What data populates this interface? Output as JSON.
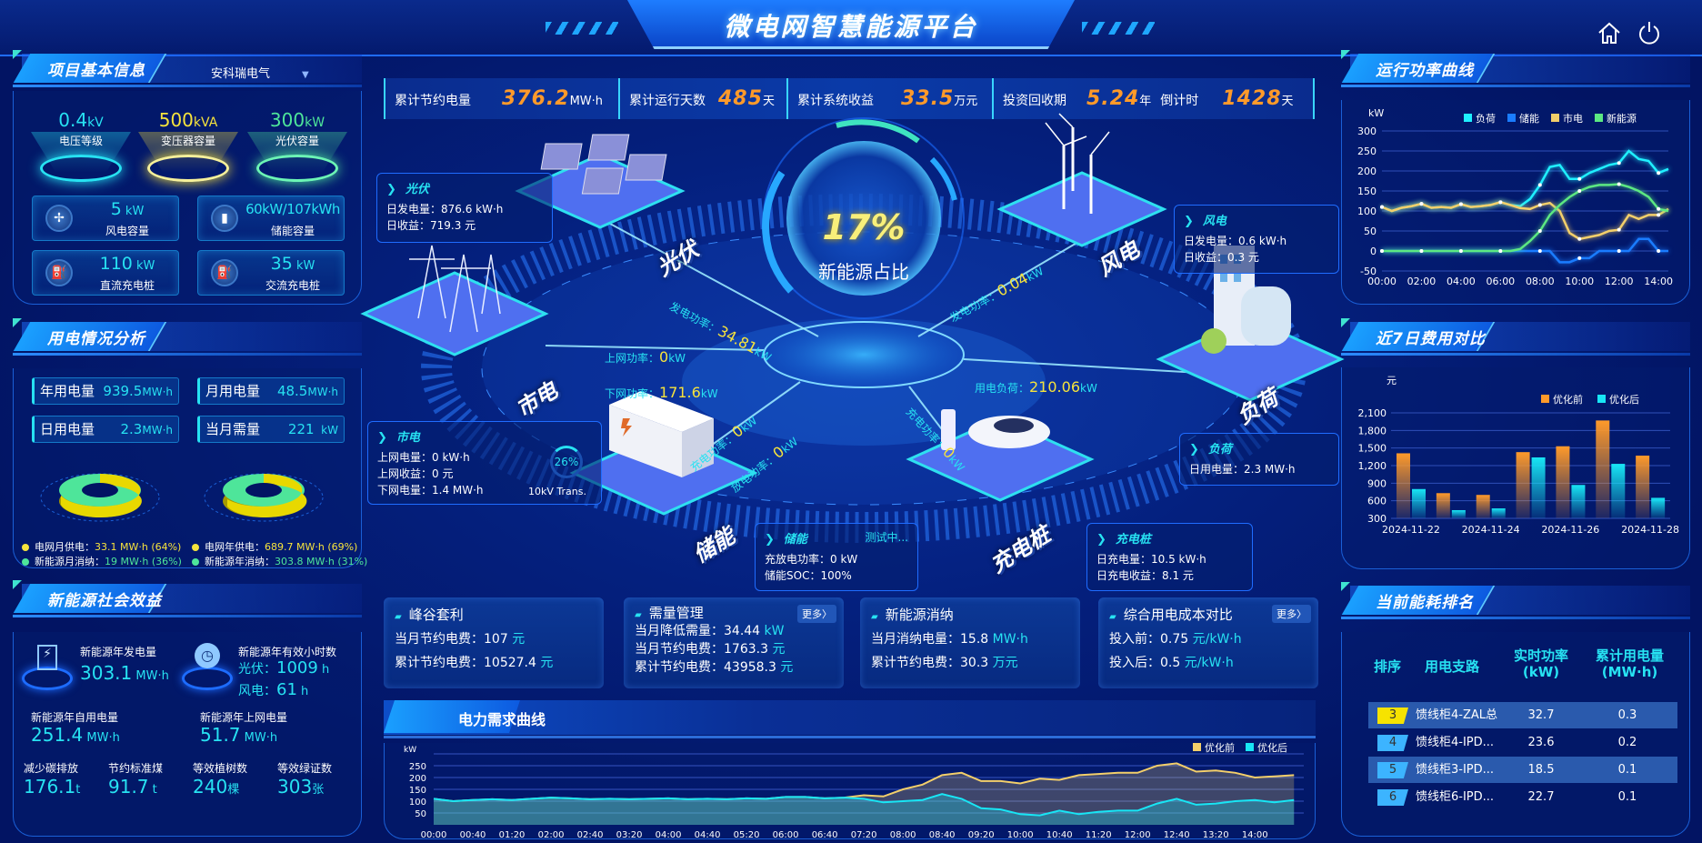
{
  "header": {
    "title": "微电网智慧能源平台",
    "home_icon": "home-icon",
    "power_icon": "power-icon"
  },
  "colors": {
    "cyan": "#27e2f2",
    "yellow": "#f6e33c",
    "green": "#4ee59a",
    "orange": "#ff9a2a",
    "storage_blue": "#1a7cff",
    "background": "#021463"
  },
  "left": {
    "project": {
      "title": "项目基本信息",
      "company": "安科瑞电气",
      "caps": [
        {
          "value": "0.4",
          "unit": "kV",
          "label": "电压等级"
        },
        {
          "value": "500",
          "unit": "kVA",
          "label": "变压器容量"
        },
        {
          "value": "300",
          "unit": "kW",
          "label": "光伏容量"
        }
      ],
      "cards": [
        {
          "value": "5",
          "unit": " kW",
          "label": "风电容量",
          "icon": "wind-turbine-icon"
        },
        {
          "value": "60kW/107kWh",
          "unit": "",
          "label": "储能容量",
          "icon": "battery-icon"
        },
        {
          "value": "110",
          "unit": " kW",
          "label": "直流充电桩",
          "icon": "charger-icon"
        },
        {
          "value": "35",
          "unit": " kW",
          "label": "交流充电桩",
          "icon": "charger-icon"
        }
      ]
    },
    "usage": {
      "title": "用电情况分析",
      "stats": [
        {
          "label": "年用电量",
          "value": "939.5",
          "unit": "MW·h"
        },
        {
          "label": "月用电量",
          "value": "48.5",
          "unit": "MW·h"
        },
        {
          "label": "日用电量",
          "value": "2.3",
          "unit": "MW·h"
        },
        {
          "label": "当月需量",
          "value": "221",
          "unit": "  kW"
        }
      ],
      "month": {
        "grid_label": "电网月供电：",
        "grid_value": "33.1 MW·h (64%)",
        "grid_pct": 64,
        "new_label": "新能源月消纳：",
        "new_value": "19 MW·h (36%)",
        "new_pct": 36
      },
      "year": {
        "grid_label": "电网年供电：",
        "grid_value": "689.7 MW·h (69%)",
        "grid_pct": 69,
        "new_label": "新能源年消纳：",
        "new_value": "303.8 MW·h (31%)",
        "new_pct": 31
      }
    },
    "social": {
      "title": "新能源社会效益",
      "gen_label": "新能源年发电量",
      "gen_value": "303.1",
      "gen_unit": " MW·h",
      "hours_label": "新能源年有效小时数",
      "pv_label": "光伏：",
      "pv_value": "1009",
      "wind_label": "风电：",
      "wind_value": "61",
      "h_unit": " h",
      "self_label": "新能源年自用电量",
      "self_value": "251.4",
      "self_unit": " MW·h",
      "up_label": "新能源年上网电量",
      "up_value": "51.7",
      "up_unit": " MW·h",
      "carbon_label": "减少碳排放",
      "carbon_value": "176.1",
      "carbon_unit": "t",
      "coal_label": "节约标准煤",
      "coal_value": "91.7",
      "coal_unit": " t",
      "tree_label": "等效植树数",
      "tree_value": "240",
      "tree_unit": "棵",
      "cert_label": "等效绿证数",
      "cert_value": "303",
      "cert_unit": "张"
    }
  },
  "topbar": [
    {
      "label": "累计节约电量",
      "value": "376.2",
      "unit": "MW·h"
    },
    {
      "label": "累计运行天数",
      "value": "485",
      "unit": "天"
    },
    {
      "label": "累计系统收益",
      "value": "33.5",
      "unit": "万元"
    },
    {
      "label": "投资回收期",
      "value": "5.24",
      "unit": "年",
      "extra_label": "倒计时",
      "extra_value": "1428",
      "extra_unit": "天"
    }
  ],
  "center": {
    "ratio": "17%",
    "ratio_label": "新能源占比",
    "ratio_value": 17,
    "nodes": {
      "pv": "光伏",
      "wind": "风电",
      "grid": "市电",
      "load": "负荷",
      "storage": "储能",
      "charger": "充电桩"
    },
    "flows": {
      "pv": {
        "label": "发电功率：",
        "value": "34.81",
        "unit": "kW"
      },
      "wind": {
        "label": "发电功率：",
        "value": "0.04",
        "unit": "kW"
      },
      "grid_up": {
        "label": "上网功率：",
        "value": "0",
        "unit": "kW"
      },
      "grid_down": {
        "label": "下网功率：",
        "value": "171.6",
        "unit": "kW"
      },
      "load": {
        "label": "用电负荷：",
        "value": "210.06",
        "unit": "kW"
      },
      "storage_charge": {
        "label": "充电功率：",
        "value": "0",
        "unit": "kW"
      },
      "storage_discharge": {
        "label": "放电功率：",
        "value": "0",
        "unit": "kW"
      },
      "charger": {
        "label": "充电功率：",
        "value": "0",
        "unit": "kW"
      }
    },
    "info": {
      "pv": {
        "title": "光伏",
        "rows": [
          "日发电量：876.6 kW·h",
          "日收益：719.3 元"
        ]
      },
      "wind": {
        "title": "风电",
        "rows": [
          "日发电量：0.6 kW·h",
          "日收益：0.3 元"
        ]
      },
      "load": {
        "title": "负荷",
        "rows": [
          "日用电量：2.3 MW·h"
        ]
      },
      "grid": {
        "title": "市电",
        "rows": [
          "上网电量：0 kW·h",
          "上网收益：0 元",
          "下网电量：1.4 MW·h"
        ],
        "trans_pct": "26%",
        "trans_pct_value": 26,
        "trans_label": "10kV Trans."
      },
      "storage": {
        "title": "储能",
        "status": "测试中...",
        "rows": [
          "充放电功率：0 kW",
          "储能SOC：100%"
        ]
      },
      "charger": {
        "title": "充电桩",
        "rows": [
          "日充电量：10.5 kW·h",
          "日充电收益：8.1 元"
        ]
      }
    }
  },
  "feature_cards": [
    {
      "title": "峰谷套利",
      "rows": [
        {
          "label": "当月节约电费：",
          "value": "107",
          "unit": "元"
        },
        {
          "label": "累计节约电费：",
          "value": "10527.4",
          "unit": "元"
        }
      ]
    },
    {
      "title": "需量管理",
      "more": "更多〉",
      "rows": [
        {
          "label": "当月降低需量：",
          "value": "34.44",
          "unit": "kW"
        },
        {
          "label": "当月节约电费：",
          "value": "1763.3",
          "unit": "元"
        },
        {
          "label": "累计节约电费：",
          "value": "43958.3",
          "unit": "元"
        }
      ]
    },
    {
      "title": "新能源消纳",
      "rows": [
        {
          "label": "当月消纳电量：",
          "value": "15.8",
          "unit": "MW·h"
        },
        {
          "label": "累计节约电费：",
          "value": "30.3",
          "unit": "万元"
        }
      ]
    },
    {
      "title": "综合用电成本对比",
      "more": "更多〉",
      "rows": [
        {
          "label": "投入前：",
          "value": "0.75",
          "unit": "元/kW·h"
        },
        {
          "label": "投入后：",
          "value": "0.5",
          "unit": "元/kW·h"
        }
      ]
    }
  ],
  "right": {
    "power_title": "运行功率曲线",
    "cost_title": "近7日费用对比",
    "rank_title": "当前能耗排名",
    "rank": {
      "headers": [
        "排序",
        "用电支路",
        "实时功率\n(kW)",
        "累计用电量\n(MW·h)"
      ],
      "rows": [
        {
          "rank": "3",
          "name": "馈线柜4-ZAL总",
          "power": "32.7",
          "energy": "0.3"
        },
        {
          "rank": "4",
          "name": "馈线柜4-IPD...",
          "power": "23.6",
          "energy": "0.2"
        },
        {
          "rank": "5",
          "name": "馈线柜3-IPD...",
          "power": "18.5",
          "energy": "0.1"
        },
        {
          "rank": "6",
          "name": "馈线柜6-IPD...",
          "power": "22.7",
          "energy": "0.1"
        }
      ]
    }
  },
  "demand_title": "电力需求曲线",
  "chart_data": [
    {
      "id": "power",
      "type": "line",
      "ylabel": "kW",
      "ylim": [
        -50,
        300
      ],
      "yticks": [
        -50,
        0,
        50,
        100,
        150,
        200,
        250,
        300
      ],
      "grid": true,
      "legend": "top",
      "xticks": [
        "00:00",
        "02:00",
        "04:00",
        "06:00",
        "08:00",
        "10:00",
        "12:00",
        "14:00"
      ],
      "x": [
        "00:00",
        "00:30",
        "01:00",
        "01:30",
        "02:00",
        "02:30",
        "03:00",
        "03:30",
        "04:00",
        "04:30",
        "05:00",
        "05:30",
        "06:00",
        "06:30",
        "07:00",
        "07:30",
        "08:00",
        "08:30",
        "09:00",
        "09:30",
        "10:00",
        "10:30",
        "11:00",
        "11:30",
        "12:00",
        "12:30",
        "13:00",
        "13:30",
        "14:00",
        "14:30"
      ],
      "series": [
        {
          "name": "负荷",
          "color": "#1ff0ff",
          "values": [
            110,
            100,
            108,
            112,
            118,
            108,
            110,
            108,
            117,
            110,
            112,
            115,
            122,
            115,
            112,
            130,
            165,
            210,
            215,
            180,
            180,
            195,
            205,
            215,
            220,
            250,
            230,
            225,
            195,
            205
          ]
        },
        {
          "name": "储能",
          "color": "#1a7cff",
          "values": [
            0,
            0,
            0,
            0,
            0,
            0,
            0,
            0,
            0,
            0,
            0,
            0,
            0,
            0,
            0,
            0,
            0,
            0,
            -28,
            -28,
            -18,
            -18,
            0,
            0,
            0,
            0,
            30,
            30,
            0,
            0
          ]
        },
        {
          "name": "市电",
          "color": "#f3cf6a",
          "values": [
            110,
            100,
            108,
            112,
            118,
            108,
            110,
            108,
            117,
            110,
            112,
            115,
            122,
            115,
            107,
            105,
            115,
            120,
            100,
            45,
            30,
            35,
            40,
            50,
            53,
            90,
            80,
            90,
            90,
            105
          ]
        },
        {
          "name": "新能源",
          "color": "#5ce882",
          "values": [
            0,
            0,
            0,
            0,
            0,
            0,
            0,
            0,
            0,
            0,
            0,
            0,
            0,
            0,
            5,
            25,
            50,
            90,
            115,
            135,
            150,
            160,
            165,
            165,
            167,
            160,
            150,
            135,
            105,
            100
          ]
        }
      ]
    },
    {
      "id": "cost",
      "type": "bar",
      "ylabel": "元",
      "ylim": [
        300,
        2100
      ],
      "yticks": [
        300,
        600,
        900,
        1200,
        1500,
        1800,
        2100
      ],
      "grid": true,
      "legend": "top-right",
      "categories": [
        "2024-11-22",
        "2024-11-23",
        "2024-11-24",
        "2024-11-25",
        "2024-11-26",
        "2024-11-27",
        "2024-11-28"
      ],
      "xticks": [
        "2024-11-22",
        "2024-11-24",
        "2024-11-26",
        "2024-11-28"
      ],
      "series": [
        {
          "name": "优化前",
          "color": "#ff9a2a",
          "values": [
            1410,
            730,
            700,
            1430,
            1530,
            1970,
            1370
          ]
        },
        {
          "name": "优化后",
          "color": "#18e6f5",
          "values": [
            800,
            440,
            470,
            1340,
            870,
            1230,
            650
          ]
        }
      ]
    },
    {
      "id": "demand",
      "type": "area",
      "ylabel": "kW",
      "ylim": [
        0,
        300
      ],
      "yticks": [
        50,
        100,
        150,
        200,
        250
      ],
      "grid": true,
      "legend": "top-right",
      "xticks": [
        "00:00",
        "00:40",
        "01:20",
        "02:00",
        "02:40",
        "03:20",
        "04:00",
        "04:40",
        "05:20",
        "06:00",
        "06:40",
        "07:20",
        "08:00",
        "08:40",
        "09:20",
        "10:00",
        "10:40",
        "11:20",
        "12:00",
        "12:40",
        "13:20",
        "14:00"
      ],
      "x": [
        "00:00",
        "00:20",
        "00:40",
        "01:00",
        "01:20",
        "01:40",
        "02:00",
        "02:20",
        "02:40",
        "03:00",
        "03:20",
        "03:40",
        "04:00",
        "04:20",
        "04:40",
        "05:00",
        "05:20",
        "05:40",
        "06:00",
        "06:20",
        "06:40",
        "07:00",
        "07:20",
        "07:40",
        "08:00",
        "08:20",
        "08:40",
        "09:00",
        "09:20",
        "09:40",
        "10:00",
        "10:20",
        "10:40",
        "11:00",
        "11:20",
        "11:40",
        "12:00",
        "12:20",
        "12:40",
        "13:00",
        "13:20",
        "13:40",
        "14:00",
        "14:20",
        "14:40"
      ],
      "series": [
        {
          "name": "优化前",
          "color": "#f3cf6a",
          "values": [
            110,
            100,
            105,
            108,
            105,
            110,
            115,
            112,
            108,
            110,
            108,
            110,
            112,
            108,
            110,
            108,
            112,
            110,
            118,
            118,
            112,
            115,
            125,
            120,
            150,
            170,
            210,
            220,
            185,
            185,
            175,
            195,
            190,
            210,
            215,
            220,
            220,
            250,
            260,
            225,
            230,
            220,
            200,
            205,
            210
          ]
        },
        {
          "name": "优化后",
          "color": "#18e6f5",
          "values": [
            110,
            100,
            105,
            108,
            105,
            110,
            115,
            112,
            108,
            110,
            108,
            110,
            112,
            108,
            110,
            108,
            112,
            110,
            118,
            118,
            112,
            115,
            110,
            95,
            100,
            105,
            130,
            110,
            70,
            65,
            45,
            40,
            60,
            45,
            55,
            60,
            60,
            90,
            110,
            85,
            90,
            100,
            105,
            95,
            105
          ]
        }
      ]
    }
  ]
}
